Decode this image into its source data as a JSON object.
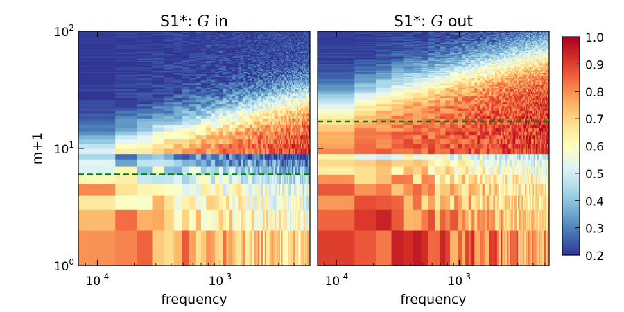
{
  "chart_data": [
    {
      "type": "heatmap",
      "title_prefix": "S1*: ",
      "title_symbol": "G",
      "title_suffix": " in",
      "xlabel": "frequency",
      "ylabel": "m+1",
      "xscale": "log",
      "yscale": "log",
      "xlim": [
        7e-05,
        0.0054
      ],
      "ylim": [
        1,
        100
      ],
      "x_ticks": [
        {
          "base": "10",
          "exp": "-4"
        },
        {
          "base": "10",
          "exp": "-3"
        }
      ],
      "y_ticks": [
        {
          "base": "10",
          "exp": "0"
        },
        {
          "base": "10",
          "exp": "1"
        },
        {
          "base": "10",
          "exp": "2"
        }
      ],
      "threshold_m_plus_1": 6,
      "threshold_color": "#008000",
      "transition_level": 10,
      "row_profile": [
        0.85,
        0.76,
        0.72,
        0.7,
        0.62,
        0.55,
        0.47,
        0.4
      ],
      "description_values": "value vs row level (m+1) at lowest frequency"
    },
    {
      "type": "heatmap",
      "title_prefix": "S1*: ",
      "title_symbol": "G",
      "title_suffix": " out",
      "xlabel": "frequency",
      "ylabel": "",
      "xscale": "log",
      "yscale": "log",
      "xlim": [
        7e-05,
        0.0054
      ],
      "ylim": [
        1,
        100
      ],
      "x_ticks": [
        {
          "base": "10",
          "exp": "-4"
        },
        {
          "base": "10",
          "exp": "-3"
        }
      ],
      "y_ticks": [],
      "threshold_m_plus_1": 17,
      "threshold_color": "#008000",
      "transition_level": 24,
      "row_profile": [
        0.95,
        0.88,
        0.85,
        0.82,
        0.78,
        0.74,
        0.7,
        0.65
      ],
      "description_values": "value vs row level (m+1) at lowest frequency"
    }
  ],
  "colorbar": {
    "min": 0.2,
    "max": 1.0,
    "ticks": [
      "1.0",
      "0.9",
      "0.8",
      "0.7",
      "0.6",
      "0.5",
      "0.4",
      "0.3",
      "0.2"
    ],
    "colormap": [
      "#313695",
      "#4575b4",
      "#74add1",
      "#abd9e9",
      "#e0f3f8",
      "#ffffbf",
      "#fee090",
      "#fdae61",
      "#f46d43",
      "#d73027",
      "#a50026"
    ]
  }
}
